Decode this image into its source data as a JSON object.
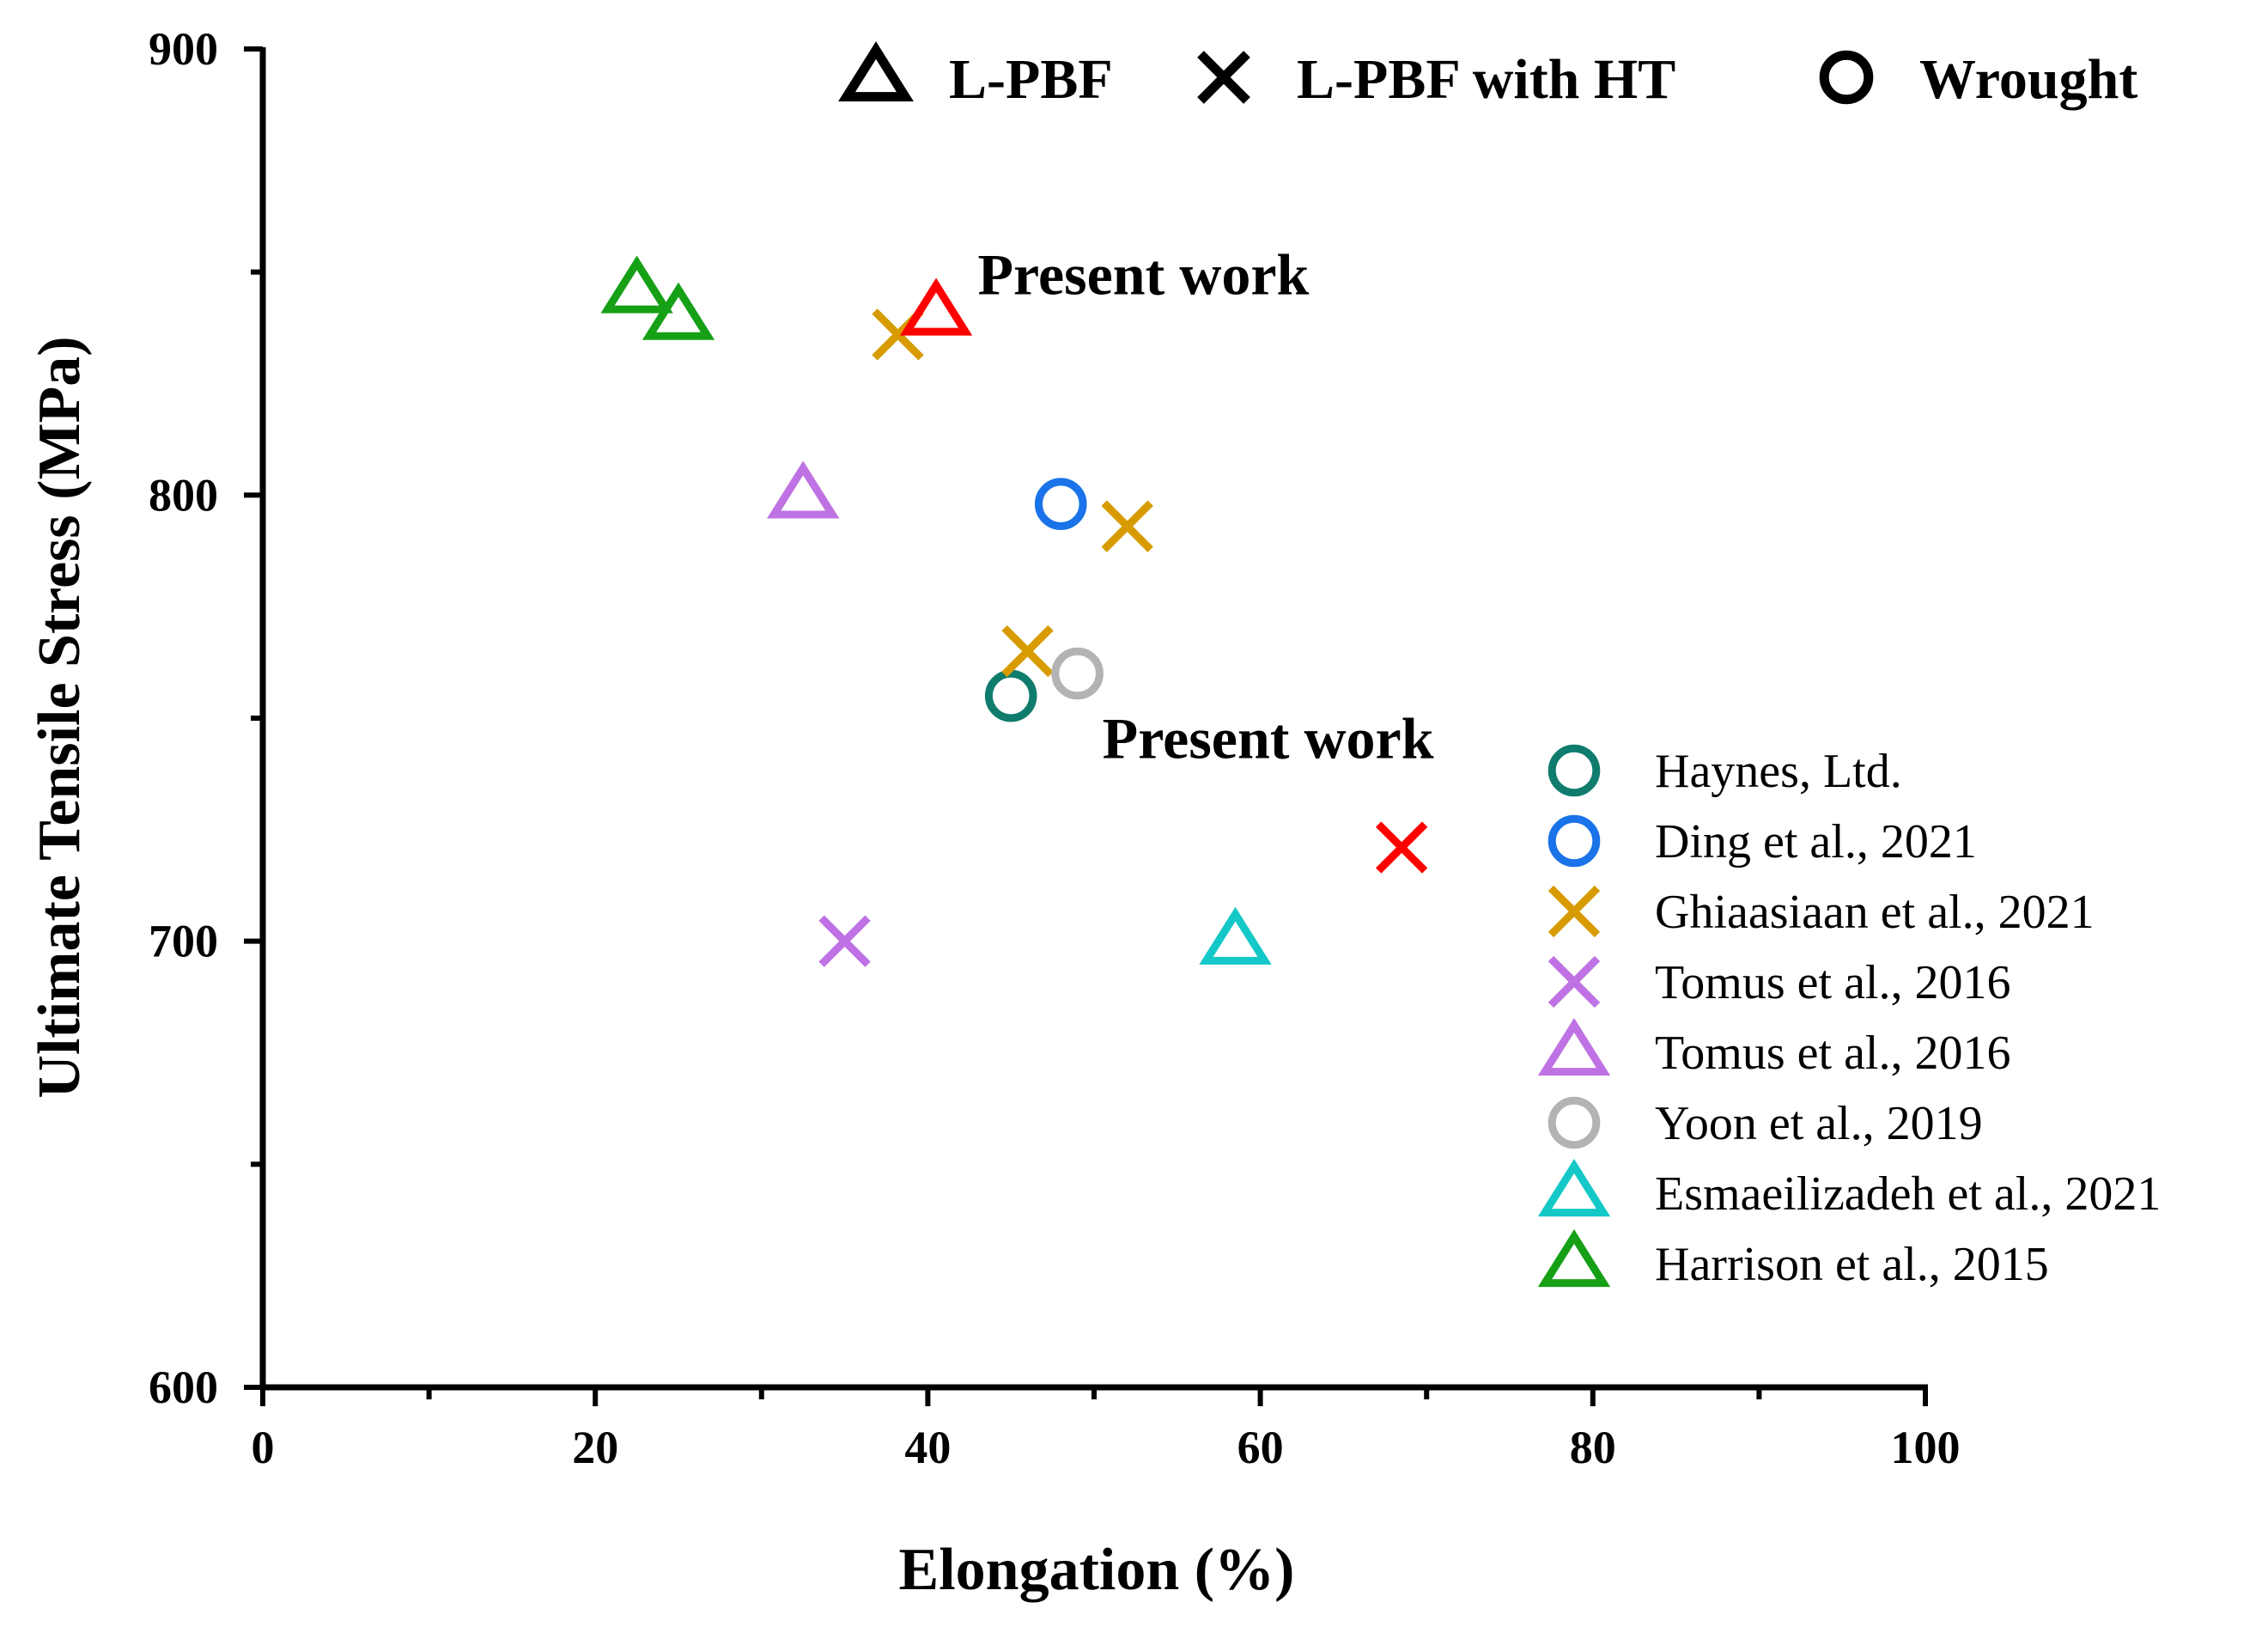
{
  "chart_data": {
    "type": "scatter",
    "title": "",
    "xlabel": "Elongation (%)",
    "ylabel": "Ultimate Tensile Stress (MPa)",
    "xlim": [
      0,
      100
    ],
    "ylim": [
      600,
      900
    ],
    "xticks": [
      0,
      20,
      40,
      60,
      80,
      100
    ],
    "yticks": [
      600,
      700,
      800,
      900
    ],
    "grid": false,
    "marker_types": [
      {
        "marker": "triangle",
        "label": "L-PBF"
      },
      {
        "marker": "cross",
        "label": "L-PBF with HT"
      },
      {
        "marker": "circle",
        "label": "Wrought"
      }
    ],
    "series": [
      {
        "name": "Haynes, Ltd.",
        "marker": "circle",
        "color": "#107c6e",
        "points": [
          [
            45,
            755
          ]
        ]
      },
      {
        "name": "Ding et al., 2021",
        "marker": "circle",
        "color": "#1a73e8",
        "points": [
          [
            48,
            798
          ]
        ]
      },
      {
        "name": "Ghiaasiaan et al., 2021",
        "marker": "cross",
        "color": "#d79b00",
        "points": [
          [
            38.2,
            836
          ],
          [
            52,
            793
          ],
          [
            46,
            765
          ]
        ]
      },
      {
        "name": "Tomus et al., 2016",
        "marker": "cross",
        "color": "#bf72e3",
        "points": [
          [
            35,
            700
          ]
        ]
      },
      {
        "name": "Tomus et al., 2016",
        "marker": "triangle",
        "color": "#bf72e3",
        "points": [
          [
            32.5,
            800
          ]
        ]
      },
      {
        "name": "Yoon et al., 2019",
        "marker": "circle",
        "color": "#b3b3b3",
        "points": [
          [
            49,
            760
          ]
        ]
      },
      {
        "name": "Esmaeilizadeh et al., 2021",
        "marker": "triangle",
        "color": "#14c8c8",
        "points": [
          [
            58.5,
            700
          ]
        ]
      },
      {
        "name": "Harrison et al., 2015",
        "marker": "triangle",
        "color": "#16a016",
        "points": [
          [
            22.5,
            846
          ],
          [
            25,
            840
          ]
        ]
      },
      {
        "name": "Present work",
        "marker": "triangle",
        "color": "#ff0000",
        "points": [
          [
            40.5,
            841
          ]
        ],
        "in_legend": false
      },
      {
        "name": "Present work",
        "marker": "cross",
        "color": "#ff0000",
        "points": [
          [
            68.5,
            721
          ]
        ],
        "in_legend": false
      }
    ],
    "annotations": [
      {
        "text": "Present work",
        "x": 43,
        "y": 845
      },
      {
        "text": "Present work",
        "x": 50.5,
        "y": 741
      }
    ],
    "legend_position": "bottom-right"
  }
}
